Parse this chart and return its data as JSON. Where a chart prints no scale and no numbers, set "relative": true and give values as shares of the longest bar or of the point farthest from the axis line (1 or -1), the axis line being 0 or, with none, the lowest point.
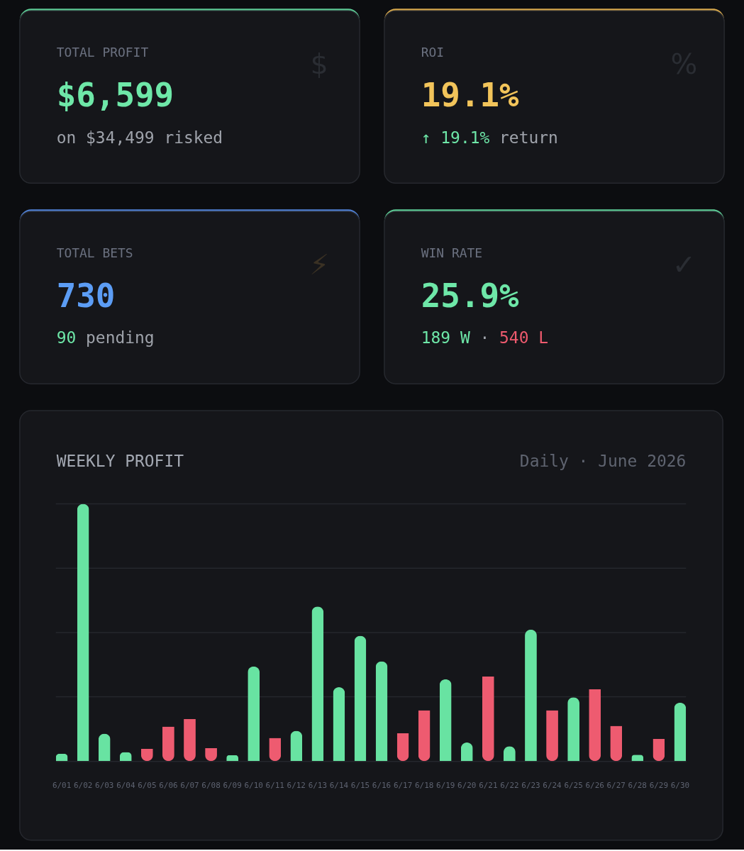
{
  "chart_data": {
    "type": "bar",
    "title": "WEEKLY PROFIT",
    "subtitle": "Daily · June 2026",
    "relative": true,
    "grid": "y",
    "annotations": [
      "TOTAL PROFIT",
      "$6,599",
      "on $34,499 risked",
      "$",
      "ROI",
      "19.1%",
      "↑ 19.1%",
      "return",
      "%",
      "TOTAL BETS",
      "730",
      "90",
      "pending",
      "⚡",
      "WIN RATE",
      "25.9%",
      "189 W",
      "·",
      "540 L",
      "✓"
    ],
    "categories": [
      "6/01",
      "6/02",
      "6/03",
      "6/04",
      "6/05",
      "6/06",
      "6/07",
      "6/08",
      "6/09",
      "6/10",
      "6/11",
      "6/12",
      "6/13",
      "6/14",
      "6/15",
      "6/16",
      "6/17",
      "6/18",
      "6/19",
      "6/20",
      "6/21",
      "6/22",
      "6/23",
      "6/24",
      "6/25",
      "6/26",
      "6/27",
      "6/28",
      "6/29",
      "6/30"
    ],
    "values": [
      0.029,
      1.0,
      0.107,
      0.035,
      0.048,
      0.134,
      0.164,
      0.05,
      0.023,
      0.368,
      0.09,
      0.118,
      0.601,
      0.287,
      0.487,
      0.388,
      0.108,
      0.198,
      0.318,
      0.072,
      0.329,
      0.058,
      0.511,
      0.198,
      0.248,
      0.279,
      0.137,
      0.025,
      0.087,
      0.227
    ],
    "colors": [
      "#68e3a2",
      "#68e3a2",
      "#68e3a2",
      "#68e3a2",
      "#ee5b70",
      "#ee5b70",
      "#ee5b70",
      "#ee5b70",
      "#68e3a2",
      "#68e3a2",
      "#ee5b70",
      "#68e3a2",
      "#68e3a2",
      "#68e3a2",
      "#68e3a2",
      "#68e3a2",
      "#ee5b70",
      "#ee5b70",
      "#68e3a2",
      "#68e3a2",
      "#ee5b70",
      "#68e3a2",
      "#68e3a2",
      "#ee5b70",
      "#68e3a2",
      "#ee5b70",
      "#ee5b70",
      "#68e3a2",
      "#ee5b70",
      "#68e3a2"
    ]
  }
}
